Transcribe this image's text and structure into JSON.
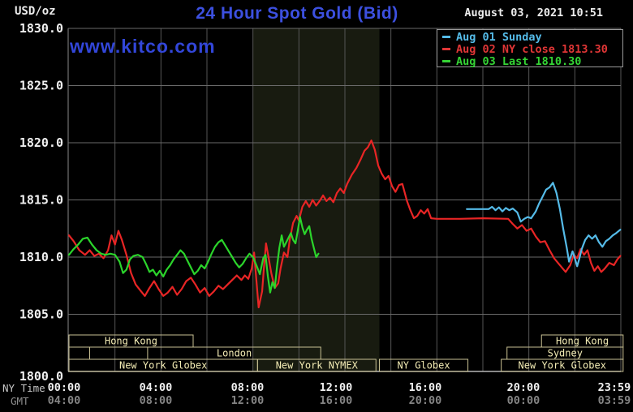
{
  "header": {
    "unit": "USD/oz",
    "title": "24 Hour Spot Gold (Bid)",
    "datetime": "August 03, 2021 10:51",
    "watermark": "www.kitco.com"
  },
  "legend": {
    "entries": [
      {
        "label": "Aug 01 Sunday",
        "color": "#55bbe8"
      },
      {
        "label": "Aug 02 NY close 1813.30",
        "color": "#e03636"
      },
      {
        "label": "Aug 03 Last 1810.30",
        "color": "#35d435"
      }
    ]
  },
  "axes": {
    "ny_time_label": "NY Time",
    "gmt_label": "GMT",
    "ny_ticks": [
      "00:00",
      "04:00",
      "08:00",
      "12:00",
      "16:00",
      "20:00",
      "23:59"
    ],
    "gmt_ticks": [
      "04:00",
      "08:00",
      "12:00",
      "16:00",
      "20:00",
      "00:00",
      "03:59"
    ],
    "y_ticks": [
      "1830.0",
      "1825.0",
      "1820.0",
      "1815.0",
      "1810.0",
      "1805.0",
      "1800.0"
    ]
  },
  "colors": {
    "background": "#000000",
    "nymex_band": "#181b10",
    "grid_h": "#6a6a6a",
    "grid_v": "#565656",
    "axis_line": "#b5b5b5",
    "left_border": "#8a8a8a",
    "tick_text": "#f0f0f0",
    "gmt_text": "#848484",
    "session_box": "#c9c193",
    "session_text": "#f2ebb4",
    "title_blue": "#3c50e0",
    "watermark_blue": "#3246d9"
  },
  "sessions": [
    {
      "row": 0,
      "label": "Hong Kong",
      "start": 0,
      "end": 5.4
    },
    {
      "row": 0,
      "label": "Hong Kong",
      "start": 20.55,
      "end": 24.1
    },
    {
      "row": 1,
      "label": "",
      "start": 0,
      "end": 0.9
    },
    {
      "row": 1,
      "label": "London",
      "start": 3.42,
      "end": 10.95
    },
    {
      "row": 1,
      "label": "Sydney",
      "start": 19.05,
      "end": 24.1
    },
    {
      "row": 2,
      "label": "New York Globex",
      "start": 0,
      "end": 8.2
    },
    {
      "row": 2,
      "label": "New York NYMEX",
      "start": 8.2,
      "end": 13.35
    },
    {
      "row": 2,
      "label": "NY Globex",
      "start": 13.5,
      "end": 17.35
    },
    {
      "row": 2,
      "label": "New York Globex",
      "start": 18.8,
      "end": 24.1
    }
  ],
  "chart_data": {
    "type": "line",
    "title": "24 Hour Spot Gold (Bid)",
    "ylabel": "USD/oz",
    "ylim": [
      1800,
      1830
    ],
    "y_ticks": [
      1830,
      1825,
      1820,
      1815,
      1810,
      1805,
      1800
    ],
    "x_hours": [
      0,
      24
    ],
    "grid": "on",
    "legend_position": "top-right",
    "nymex_band_hours": [
      8.0,
      13.5
    ],
    "series": [
      {
        "name": "Aug 02 NY close 1813.30",
        "color": "#e82525",
        "width": 2.2,
        "points": [
          [
            0,
            1811.9
          ],
          [
            0.2,
            1811.4
          ],
          [
            0.45,
            1810.6
          ],
          [
            0.7,
            1810.2
          ],
          [
            0.9,
            1810.6
          ],
          [
            1.1,
            1810.1
          ],
          [
            1.3,
            1810.3
          ],
          [
            1.5,
            1809.9
          ],
          [
            1.7,
            1810.6
          ],
          [
            1.85,
            1811.9
          ],
          [
            2.0,
            1811.1
          ],
          [
            2.15,
            1812.3
          ],
          [
            2.3,
            1811.5
          ],
          [
            2.5,
            1810.2
          ],
          [
            2.7,
            1808.6
          ],
          [
            2.9,
            1807.6
          ],
          [
            3.1,
            1807.1
          ],
          [
            3.3,
            1806.6
          ],
          [
            3.5,
            1807.3
          ],
          [
            3.7,
            1807.9
          ],
          [
            3.9,
            1807.2
          ],
          [
            4.1,
            1806.6
          ],
          [
            4.3,
            1806.9
          ],
          [
            4.5,
            1807.4
          ],
          [
            4.7,
            1806.7
          ],
          [
            4.9,
            1807.2
          ],
          [
            5.1,
            1807.9
          ],
          [
            5.3,
            1808.2
          ],
          [
            5.5,
            1807.6
          ],
          [
            5.7,
            1806.9
          ],
          [
            5.9,
            1807.3
          ],
          [
            6.1,
            1806.6
          ],
          [
            6.3,
            1807.0
          ],
          [
            6.5,
            1807.5
          ],
          [
            6.7,
            1807.2
          ],
          [
            6.9,
            1807.6
          ],
          [
            7.1,
            1808.0
          ],
          [
            7.3,
            1808.4
          ],
          [
            7.5,
            1808.0
          ],
          [
            7.65,
            1808.4
          ],
          [
            7.8,
            1808.1
          ],
          [
            7.95,
            1809.0
          ],
          [
            8.05,
            1810.4
          ],
          [
            8.15,
            1808.0
          ],
          [
            8.25,
            1805.6
          ],
          [
            8.4,
            1807.0
          ],
          [
            8.5,
            1809.6
          ],
          [
            8.57,
            1811.2
          ],
          [
            8.65,
            1810.3
          ],
          [
            8.8,
            1808.6
          ],
          [
            8.95,
            1807.3
          ],
          [
            9.1,
            1807.7
          ],
          [
            9.2,
            1809.0
          ],
          [
            9.35,
            1810.4
          ],
          [
            9.5,
            1810.0
          ],
          [
            9.6,
            1811.5
          ],
          [
            9.75,
            1813.0
          ],
          [
            9.9,
            1813.6
          ],
          [
            10.0,
            1813.2
          ],
          [
            10.15,
            1814.4
          ],
          [
            10.3,
            1814.9
          ],
          [
            10.45,
            1814.4
          ],
          [
            10.6,
            1815.0
          ],
          [
            10.75,
            1814.5
          ],
          [
            10.9,
            1814.9
          ],
          [
            11.05,
            1815.4
          ],
          [
            11.2,
            1814.9
          ],
          [
            11.35,
            1815.2
          ],
          [
            11.5,
            1814.8
          ],
          [
            11.65,
            1815.6
          ],
          [
            11.8,
            1816.0
          ],
          [
            11.95,
            1815.6
          ],
          [
            12.1,
            1816.4
          ],
          [
            12.3,
            1817.2
          ],
          [
            12.5,
            1817.8
          ],
          [
            12.7,
            1818.6
          ],
          [
            12.85,
            1819.3
          ],
          [
            13.0,
            1819.6
          ],
          [
            13.15,
            1820.2
          ],
          [
            13.3,
            1819.4
          ],
          [
            13.45,
            1818.0
          ],
          [
            13.6,
            1817.3
          ],
          [
            13.75,
            1816.8
          ],
          [
            13.9,
            1817.1
          ],
          [
            14.05,
            1816.2
          ],
          [
            14.2,
            1815.7
          ],
          [
            14.35,
            1816.3
          ],
          [
            14.5,
            1816.4
          ],
          [
            14.7,
            1814.9
          ],
          [
            14.85,
            1814.1
          ],
          [
            15.0,
            1813.4
          ],
          [
            15.15,
            1813.6
          ],
          [
            15.3,
            1814.1
          ],
          [
            15.45,
            1813.8
          ],
          [
            15.6,
            1814.2
          ],
          [
            15.75,
            1813.4
          ],
          [
            16.0,
            1813.35
          ],
          [
            17.0,
            1813.35
          ],
          [
            18.0,
            1813.4
          ],
          [
            19.1,
            1813.35
          ],
          [
            19.3,
            1812.9
          ],
          [
            19.5,
            1812.5
          ],
          [
            19.7,
            1812.8
          ],
          [
            19.9,
            1812.3
          ],
          [
            20.1,
            1812.5
          ],
          [
            20.3,
            1811.8
          ],
          [
            20.5,
            1811.3
          ],
          [
            20.7,
            1811.4
          ],
          [
            20.9,
            1810.6
          ],
          [
            21.1,
            1809.9
          ],
          [
            21.35,
            1809.3
          ],
          [
            21.6,
            1808.7
          ],
          [
            21.8,
            1809.3
          ],
          [
            21.95,
            1810.2
          ],
          [
            22.1,
            1809.9
          ],
          [
            22.25,
            1810.7
          ],
          [
            22.4,
            1810.2
          ],
          [
            22.55,
            1810.6
          ],
          [
            22.7,
            1809.5
          ],
          [
            22.85,
            1808.8
          ],
          [
            23.0,
            1809.2
          ],
          [
            23.15,
            1808.7
          ],
          [
            23.3,
            1809.0
          ],
          [
            23.5,
            1809.5
          ],
          [
            23.7,
            1809.3
          ],
          [
            23.85,
            1809.8
          ],
          [
            23.98,
            1810.1
          ]
        ]
      },
      {
        "name": "Aug 01 Sunday",
        "color": "#55bbe8",
        "width": 2.2,
        "points": [
          [
            17.3,
            1814.2
          ],
          [
            18.25,
            1814.2
          ],
          [
            18.4,
            1814.4
          ],
          [
            18.55,
            1814.1
          ],
          [
            18.7,
            1814.35
          ],
          [
            18.85,
            1814.0
          ],
          [
            19.0,
            1814.3
          ],
          [
            19.15,
            1814.1
          ],
          [
            19.3,
            1814.25
          ],
          [
            19.5,
            1813.9
          ],
          [
            19.65,
            1813.1
          ],
          [
            19.8,
            1813.35
          ],
          [
            19.95,
            1813.5
          ],
          [
            20.1,
            1813.4
          ],
          [
            20.3,
            1814.0
          ],
          [
            20.45,
            1814.7
          ],
          [
            20.6,
            1815.3
          ],
          [
            20.75,
            1815.9
          ],
          [
            20.9,
            1816.1
          ],
          [
            21.05,
            1816.5
          ],
          [
            21.2,
            1815.6
          ],
          [
            21.35,
            1814.2
          ],
          [
            21.5,
            1812.4
          ],
          [
            21.65,
            1810.8
          ],
          [
            21.75,
            1809.6
          ],
          [
            21.9,
            1810.5
          ],
          [
            22.0,
            1809.9
          ],
          [
            22.1,
            1809.2
          ],
          [
            22.2,
            1809.9
          ],
          [
            22.3,
            1810.7
          ],
          [
            22.45,
            1811.5
          ],
          [
            22.6,
            1811.9
          ],
          [
            22.75,
            1811.6
          ],
          [
            22.9,
            1811.9
          ],
          [
            23.05,
            1811.3
          ],
          [
            23.2,
            1810.9
          ],
          [
            23.35,
            1811.4
          ],
          [
            23.5,
            1811.6
          ],
          [
            23.65,
            1811.9
          ],
          [
            23.8,
            1812.1
          ],
          [
            23.98,
            1812.4
          ]
        ]
      },
      {
        "name": "Aug 03 Last 1810.30",
        "color": "#2bd42b",
        "width": 2.2,
        "points": [
          [
            0,
            1810.2
          ],
          [
            0.2,
            1810.7
          ],
          [
            0.4,
            1811.1
          ],
          [
            0.6,
            1811.6
          ],
          [
            0.8,
            1811.7
          ],
          [
            1.0,
            1811.1
          ],
          [
            1.2,
            1810.6
          ],
          [
            1.4,
            1810.3
          ],
          [
            1.6,
            1810.2
          ],
          [
            1.8,
            1810.3
          ],
          [
            2.0,
            1810.2
          ],
          [
            2.2,
            1809.6
          ],
          [
            2.35,
            1808.6
          ],
          [
            2.5,
            1808.9
          ],
          [
            2.65,
            1809.8
          ],
          [
            2.8,
            1810.1
          ],
          [
            3.0,
            1810.2
          ],
          [
            3.2,
            1810.0
          ],
          [
            3.35,
            1809.4
          ],
          [
            3.5,
            1808.7
          ],
          [
            3.65,
            1808.9
          ],
          [
            3.8,
            1808.4
          ],
          [
            3.95,
            1808.8
          ],
          [
            4.1,
            1808.3
          ],
          [
            4.25,
            1808.9
          ],
          [
            4.4,
            1809.3
          ],
          [
            4.55,
            1809.8
          ],
          [
            4.7,
            1810.2
          ],
          [
            4.85,
            1810.6
          ],
          [
            5.0,
            1810.3
          ],
          [
            5.15,
            1809.7
          ],
          [
            5.3,
            1809.1
          ],
          [
            5.45,
            1808.5
          ],
          [
            5.6,
            1808.8
          ],
          [
            5.75,
            1809.3
          ],
          [
            5.9,
            1809.0
          ],
          [
            6.05,
            1809.6
          ],
          [
            6.2,
            1810.3
          ],
          [
            6.35,
            1810.9
          ],
          [
            6.5,
            1811.3
          ],
          [
            6.65,
            1811.5
          ],
          [
            6.8,
            1811.0
          ],
          [
            6.95,
            1810.5
          ],
          [
            7.1,
            1810.0
          ],
          [
            7.25,
            1809.5
          ],
          [
            7.4,
            1809.1
          ],
          [
            7.55,
            1809.4
          ],
          [
            7.7,
            1809.9
          ],
          [
            7.85,
            1810.3
          ],
          [
            8.0,
            1810.0
          ],
          [
            8.15,
            1809.3
          ],
          [
            8.3,
            1808.5
          ],
          [
            8.45,
            1809.9
          ],
          [
            8.55,
            1810.2
          ],
          [
            8.65,
            1808.3
          ],
          [
            8.75,
            1806.9
          ],
          [
            8.85,
            1807.8
          ],
          [
            8.95,
            1807.3
          ],
          [
            9.05,
            1809.2
          ],
          [
            9.15,
            1810.8
          ],
          [
            9.25,
            1811.9
          ],
          [
            9.35,
            1810.9
          ],
          [
            9.45,
            1811.3
          ],
          [
            9.55,
            1811.7
          ],
          [
            9.65,
            1812.1
          ],
          [
            9.75,
            1811.5
          ],
          [
            9.85,
            1811.2
          ],
          [
            9.95,
            1812.3
          ],
          [
            10.05,
            1813.5
          ],
          [
            10.15,
            1812.6
          ],
          [
            10.25,
            1812.0
          ],
          [
            10.35,
            1812.4
          ],
          [
            10.45,
            1812.7
          ],
          [
            10.55,
            1811.6
          ],
          [
            10.65,
            1810.8
          ],
          [
            10.75,
            1810.0
          ],
          [
            10.85,
            1810.3
          ]
        ]
      }
    ]
  }
}
